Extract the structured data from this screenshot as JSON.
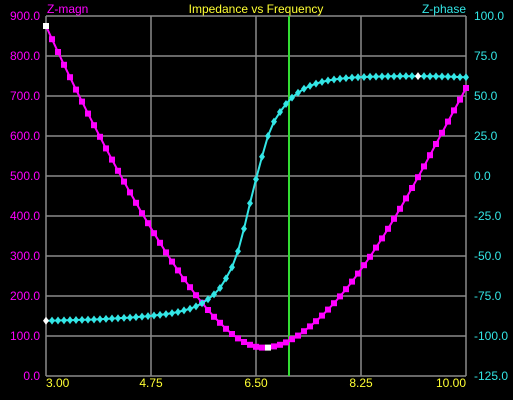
{
  "colors": {
    "background": "#000000",
    "grid": "#8a8a8a",
    "magnitude": "#ff00ff",
    "phase": "#33e6e6",
    "title": "#ffff33",
    "x_ticks": "#ffff33",
    "cursor": "#33dd33",
    "marker": "#ffffff"
  },
  "chart_data": {
    "type": "line",
    "title": "Impedance vs Frequency",
    "grid": true,
    "x_ticks": [
      "3.00",
      "4.75",
      "6.50",
      "8.25",
      "10.00"
    ],
    "x_range": [
      3.0,
      10.0
    ],
    "cursor_x": 7.05,
    "left_axis": {
      "label": "Z-magn",
      "range": [
        0,
        900
      ],
      "ticks": [
        "0.0",
        "100.0",
        "200.0",
        "300.0",
        "400.0",
        "500.0",
        "600.0",
        "700.0",
        "800.0",
        "900.0"
      ]
    },
    "right_axis": {
      "label": "Z-phase",
      "range": [
        -125,
        100
      ],
      "ticks": [
        "-125.0",
        "-100.0",
        "-75.0",
        "-50.0",
        "-25.0",
        "0.0",
        "25.0",
        "50.0",
        "75.0",
        "100.0"
      ]
    },
    "series": [
      {
        "axis": "left",
        "marker": "square",
        "x_start": 3.0,
        "x_step": 0.1,
        "values": [
          875,
          842,
          810,
          778,
          747,
          716,
          686,
          656,
          627,
          598,
          569,
          541,
          513,
          486,
          459,
          433,
          407,
          382,
          357,
          333,
          309,
          286,
          264,
          242,
          222,
          202,
          183,
          165,
          148,
          133,
          118,
          105,
          94,
          85,
          78,
          73,
          71,
          71,
          74,
          78,
          84,
          92,
          101,
          112,
          124,
          137,
          151,
          166,
          182,
          199,
          217,
          236,
          256,
          277,
          298,
          321,
          344,
          368,
          393,
          418,
          444,
          470,
          497,
          524,
          552,
          580,
          608,
          636,
          664,
          691,
          720
        ]
      },
      {
        "axis": "right",
        "marker": "diamond",
        "x_start": 3.0,
        "x_step": 0.1,
        "values": [
          -90.5,
          -90.4,
          -90.3,
          -90.2,
          -90.1,
          -90.0,
          -89.9,
          -89.8,
          -89.7,
          -89.5,
          -89.3,
          -89.1,
          -88.9,
          -88.7,
          -88.5,
          -88.2,
          -87.9,
          -87.6,
          -87.2,
          -86.8,
          -86.3,
          -85.7,
          -85.0,
          -84.0,
          -83.0,
          -81.5,
          -79.5,
          -77.0,
          -74.0,
          -70.0,
          -64.0,
          -57.0,
          -47.0,
          -33.0,
          -17.0,
          -2.0,
          12.0,
          25.0,
          34.0,
          40.0,
          45.0,
          49.0,
          52.0,
          54.5,
          56.3,
          57.7,
          58.8,
          59.7,
          60.3,
          60.8,
          61.2,
          61.5,
          61.7,
          61.9,
          62.0,
          62.1,
          62.2,
          62.3,
          62.3,
          62.4,
          62.4,
          62.4,
          62.4,
          62.4,
          62.3,
          62.3,
          62.2,
          62.1,
          62.0,
          61.8,
          61.7
        ]
      }
    ],
    "highlight_points": [
      {
        "series": 0,
        "index": 0
      },
      {
        "series": 0,
        "index": 37
      },
      {
        "series": 1,
        "index": 0
      },
      {
        "series": 1,
        "index": 62
      }
    ]
  }
}
